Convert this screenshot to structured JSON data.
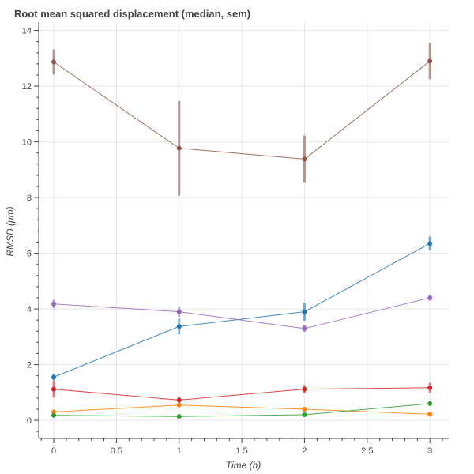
{
  "chart_data": {
    "type": "line",
    "title": "Root mean squared displacement (median, sem)",
    "xlabel": "Time (h)",
    "ylabel": "RMSD (μm)",
    "xlim": [
      -0.12,
      3.15
    ],
    "ylim": [
      -0.65,
      14.3
    ],
    "x_ticks": [
      0,
      0.5,
      1,
      1.5,
      2,
      2.5,
      3
    ],
    "x_tick_labels": [
      "0",
      "0.5",
      "1",
      "1.5",
      "2",
      "2.5",
      "3"
    ],
    "y_ticks": [
      0,
      2,
      4,
      6,
      8,
      10,
      12,
      14
    ],
    "y_tick_labels": [
      "0",
      "2",
      "4",
      "6",
      "8",
      "10",
      "12",
      "14"
    ],
    "grid": true,
    "x": [
      0,
      1,
      2,
      3
    ],
    "series": [
      {
        "color": "#8c564b",
        "values": [
          12.87,
          9.77,
          9.38,
          12.9
        ],
        "sem": [
          0.45,
          1.7,
          0.85,
          0.65
        ]
      },
      {
        "color": "#1f77b4",
        "values": [
          1.55,
          3.37,
          3.9,
          6.35
        ],
        "sem": [
          0.12,
          0.28,
          0.32,
          0.25
        ]
      },
      {
        "color": "#9467bd",
        "values": [
          4.18,
          3.9,
          3.3,
          4.4
        ],
        "sem": [
          0.15,
          0.18,
          0.12,
          0.1
        ]
      },
      {
        "color": "#d62728",
        "values": [
          1.12,
          0.73,
          1.12,
          1.17
        ],
        "sem": [
          0.3,
          0.12,
          0.15,
          0.18
        ]
      },
      {
        "color": "#ff7f0e",
        "values": [
          0.3,
          0.55,
          0.4,
          0.22
        ],
        "sem": [
          0.08,
          0.06,
          0.05,
          0.04
        ]
      },
      {
        "color": "#2ca02c",
        "values": [
          0.18,
          0.14,
          0.2,
          0.6
        ],
        "sem": [
          0.04,
          0.03,
          0.04,
          0.06
        ]
      }
    ]
  }
}
